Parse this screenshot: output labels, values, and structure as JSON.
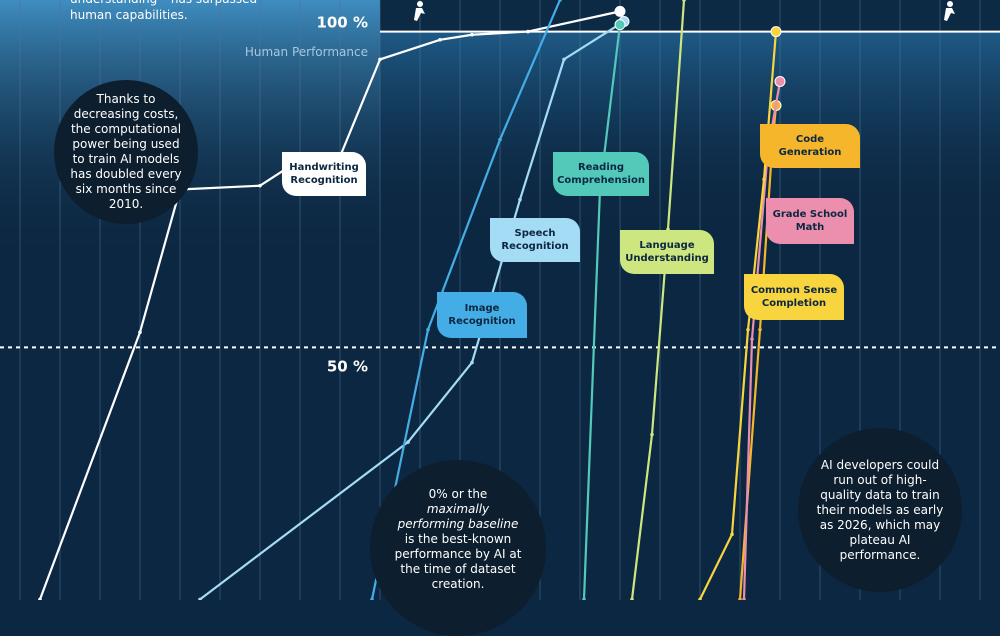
{
  "chart_data": {
    "type": "line",
    "intro_text": "understanding – has surpassed human capabilities.",
    "human_performance_label": "Human Performance",
    "xlim": [
      1999.5,
      2024.5
    ],
    "xticks": [
      2000,
      2001,
      2002,
      2003,
      2004,
      2005,
      2006,
      2007,
      2008,
      2009,
      2010,
      2011,
      2012,
      2013,
      2014,
      2015,
      2016,
      2017,
      2018,
      2019,
      2020,
      2021,
      2022,
      2023,
      2024
    ],
    "ylim": [
      10,
      105
    ],
    "yticks": [
      {
        "value": 50,
        "label": "50 %"
      },
      {
        "value": 100,
        "label": "100 %"
      }
    ],
    "grid": true,
    "series": [
      {
        "name": "Handwriting Recognition",
        "color": "#ffffff",
        "x": [
          2000.5,
          2003.0,
          2004.0,
          2006.0,
          2007.0,
          2008.0,
          2009.0,
          2010.5,
          2011.3,
          2012.7,
          2015.0
        ],
        "values": [
          10.1,
          52.4,
          75.0,
          75.6,
          79.7,
          80.2,
          95.6,
          98.7,
          99.5,
          100.0,
          103.2
        ]
      },
      {
        "name": "Speech Recognition",
        "color": "#a3dcf4",
        "x": [
          2004.5,
          2009.7,
          2011.3,
          2012.5,
          2013.6,
          2015.1
        ],
        "values": [
          10.1,
          35.0,
          47.6,
          73.4,
          95.6,
          101.6
        ]
      },
      {
        "name": "Image Recognition",
        "color": "#45ade6",
        "x": [
          2008.8,
          2010.2,
          2012.0,
          2013.5
        ],
        "values": [
          10.1,
          52.8,
          82.9,
          105.0
        ]
      },
      {
        "name": "Reading Comprehension",
        "color": "#52c9b9",
        "x": [
          2014.1,
          2014.5,
          2015.0
        ],
        "values": [
          10.1,
          75.0,
          101.1
        ]
      },
      {
        "name": "Language Understanding",
        "color": "#cde67f",
        "x": [
          2015.3,
          2015.8,
          2016.2,
          2016.6
        ],
        "values": [
          10.1,
          36.2,
          68.7,
          105.0
        ]
      },
      {
        "name": "Code Generation",
        "color": "#f5b62c",
        "x": [
          2018.0,
          2018.5,
          2018.8,
          2018.9
        ],
        "values": [
          10.1,
          52.8,
          81.3,
          88.3
        ]
      },
      {
        "name": "Grade School Math",
        "color": "#ec8fae",
        "x": [
          2018.1,
          2018.3,
          2018.7,
          2019.0
        ],
        "values": [
          10.1,
          51.3,
          81.3,
          92.1
        ]
      },
      {
        "name": "Common Sense Completion",
        "color": "#f8d53e",
        "x": [
          2017.0,
          2017.8,
          2018.2,
          2018.6,
          2018.9
        ],
        "values": [
          10.1,
          20.4,
          52.8,
          76.6,
          100.0
        ]
      }
    ],
    "annotations": [
      {
        "text": "Thanks to decreasing costs, the computational power being used to train AI models has doubled every six months since 2010."
      },
      {
        "text_before": "0% or the",
        "text_italic": "maximally performing baseline",
        "text_after": "is the best-known performance by AI at the time of dataset creation."
      },
      {
        "text": "AI developers could run out of high-quality data to train their models as early as 2026, which may plateau AI performance."
      }
    ]
  }
}
